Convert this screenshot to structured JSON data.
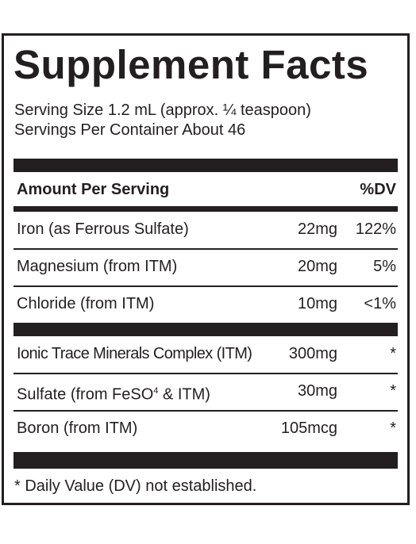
{
  "title": "Supplement Facts",
  "serving_size": "Serving Size 1.2 mL (approx. ¼ teaspoon)",
  "servings_per_container": "Servings Per Container About 46",
  "header": {
    "amount_label": "Amount Per Serving",
    "dv_label": "%DV"
  },
  "nutrients": [
    {
      "name": "Iron (as Ferrous Sulfate)",
      "amount": "22mg",
      "dv": "122%"
    },
    {
      "name": "Magnesium (from ITM)",
      "amount": "20mg",
      "dv": "5%"
    },
    {
      "name": "Chloride (from ITM)",
      "amount": "10mg",
      "dv": "<1%"
    }
  ],
  "other_ingredients": [
    {
      "name": "Ionic Trace Minerals Complex (ITM)",
      "amount": "300mg",
      "dv": "*"
    },
    {
      "name": "Sulfate (from FeSO",
      "superscript": "4",
      "name_suffix": " & ITM)",
      "amount": "30mg",
      "dv": "*"
    },
    {
      "name": "Boron (from ITM)",
      "amount": "105mcg",
      "dv": "*"
    }
  ],
  "footnote": "* Daily Value (DV) not established."
}
